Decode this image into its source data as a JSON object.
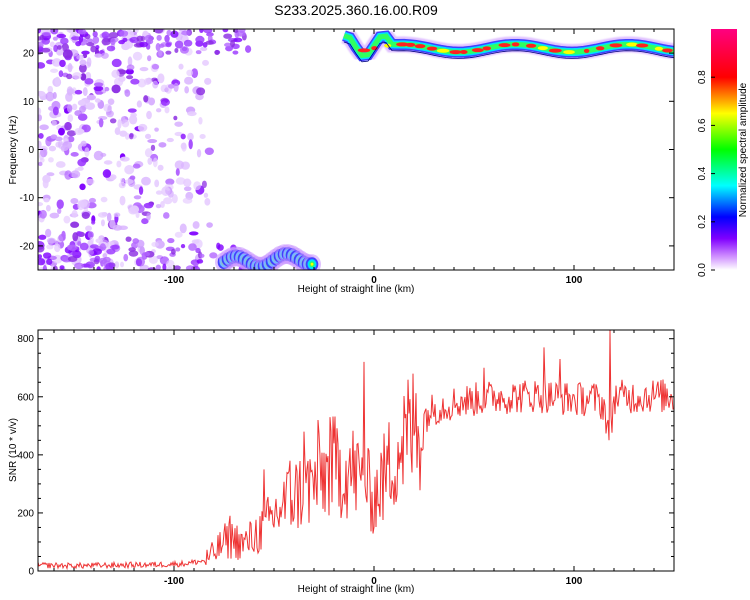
{
  "title": "S233.2025.360.16.00.R09",
  "chart_data": [
    {
      "type": "heatmap",
      "title": "S233.2025.360.16.00.R09",
      "xlabel": "Height of straight line (km)",
      "ylabel": "Frequency (Hz)",
      "xlim": [
        -168,
        150
      ],
      "ylim": [
        -25,
        25
      ],
      "xticks": [
        -100,
        0,
        100
      ],
      "yticks": [
        -20,
        -10,
        0,
        10,
        20
      ],
      "colorbar": {
        "label": "Normalized spectral amplitude",
        "range": [
          0.0,
          1.0
        ],
        "ticks": [
          0.0,
          0.2,
          0.4,
          0.6,
          0.8
        ],
        "colors": [
          "#ffffff",
          "#cc88ff",
          "#8000ff",
          "#0000ff",
          "#00ffff",
          "#00ff00",
          "#ffff00",
          "#ff0000",
          "#ff0080"
        ]
      },
      "features": {
        "noise_region_x": [
          -168,
          -82
        ],
        "signal_band_top": {
          "x_start": -15,
          "x_end": 150,
          "freq_hz": 21
        },
        "signal_band_bottom": {
          "x_start": -75,
          "x_end": -30,
          "freq_hz": -23
        }
      }
    },
    {
      "type": "line",
      "xlabel": "Height of straight line (km)",
      "ylabel": "SNR (10 * v/v)",
      "xlim": [
        -168,
        150
      ],
      "ylim": [
        0,
        830
      ],
      "xticks": [
        -100,
        0,
        100
      ],
      "yticks": [
        0,
        200,
        400,
        600,
        800
      ],
      "series": [
        {
          "name": "SNR",
          "color": "#ee3333",
          "x": [
            -168,
            -150,
            -130,
            -110,
            -95,
            -85,
            -80,
            -75,
            -70,
            -65,
            -60,
            -55,
            -50,
            -45,
            -40,
            -35,
            -30,
            -25,
            -20,
            -15,
            -10,
            -5,
            0,
            5,
            10,
            15,
            20,
            25,
            30,
            40,
            50,
            60,
            70,
            80,
            90,
            100,
            110,
            115,
            118,
            120,
            130,
            140,
            150
          ],
          "y": [
            20,
            18,
            20,
            22,
            25,
            35,
            60,
            100,
            110,
            90,
            120,
            150,
            190,
            230,
            260,
            280,
            300,
            330,
            360,
            350,
            340,
            300,
            250,
            320,
            400,
            450,
            490,
            530,
            560,
            580,
            590,
            600,
            600,
            605,
            600,
            590,
            595,
            570,
            450,
            600,
            600,
            605,
            600
          ],
          "spikes": [
            {
              "x": -72,
              "y": 190
            },
            {
              "x": -55,
              "y": 350
            },
            {
              "x": -42,
              "y": 380
            },
            {
              "x": -35,
              "y": 480
            },
            {
              "x": -28,
              "y": 520
            },
            {
              "x": -22,
              "y": 530
            },
            {
              "x": -5,
              "y": 720
            },
            {
              "x": 55,
              "y": 700
            },
            {
              "x": 85,
              "y": 770
            },
            {
              "x": 93,
              "y": 730
            },
            {
              "x": 118,
              "y": 830
            }
          ]
        }
      ]
    }
  ]
}
